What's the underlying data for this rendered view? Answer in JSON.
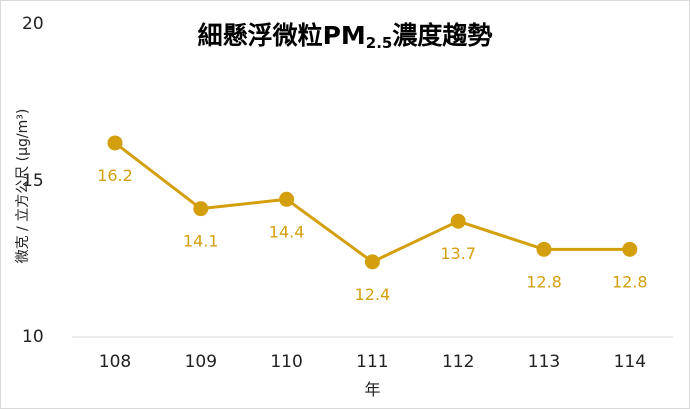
{
  "chart_data": {
    "type": "line",
    "title_main": "細懸浮微粒PM",
    "title_sub": "2.5",
    "title_end": "濃度趨勢",
    "title": "細懸浮微粒PM2.5濃度趨勢",
    "xlabel": "年",
    "ylabel": "微克 / 立方公尺 (µg/m³)",
    "categories": [
      "108",
      "109",
      "110",
      "111",
      "112",
      "113",
      "114"
    ],
    "values": [
      16.2,
      14.1,
      14.4,
      12.4,
      13.7,
      12.8,
      12.8
    ],
    "value_labels": [
      "16.2",
      "14.1",
      "14.4",
      "12.4",
      "13.7",
      "12.8",
      "12.8"
    ],
    "ylim": [
      10,
      20
    ],
    "yticks": [
      "10",
      "15",
      "20"
    ],
    "grid": false,
    "legend": "none",
    "series_color": "#d49f0c"
  }
}
